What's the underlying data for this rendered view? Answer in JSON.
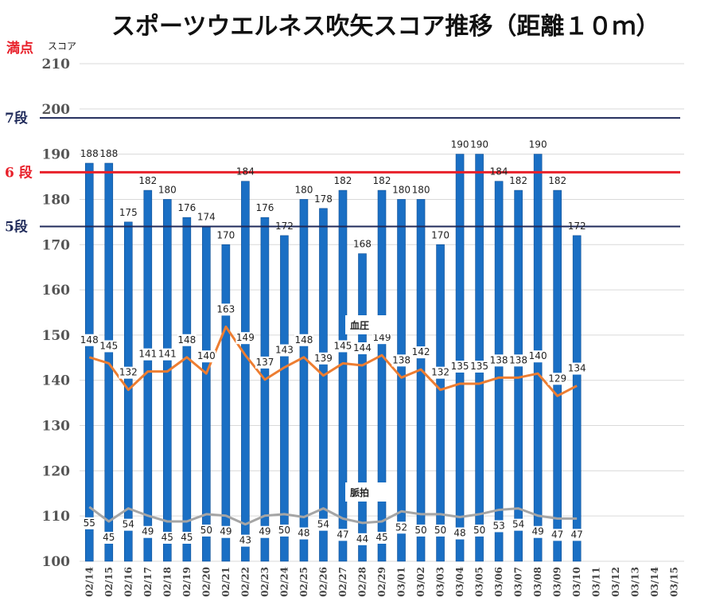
{
  "chart_data": {
    "type": "bar",
    "title": "スポーツウエルネス吹矢スコア推移（距離１０ｍ）",
    "ylabel": "スコア",
    "top_label": "満点",
    "ylim": [
      100,
      210
    ],
    "yticks": [
      100,
      110,
      120,
      130,
      140,
      150,
      160,
      170,
      180,
      190,
      200,
      210
    ],
    "categories": [
      "02/14",
      "02/15",
      "02/16",
      "02/17",
      "02/18",
      "02/19",
      "02/20",
      "02/21",
      "02/22",
      "02/23",
      "02/24",
      "02/25",
      "02/26",
      "02/27",
      "02/28",
      "02/29",
      "03/01",
      "03/02",
      "03/03",
      "03/04",
      "03/05",
      "03/06",
      "03/07",
      "03/08",
      "03/09",
      "03/10",
      "03/11",
      "03/12",
      "03/13",
      "03/14",
      "03/15"
    ],
    "series": [
      {
        "values": [
          188,
          188,
          175,
          182,
          180,
          176,
          174,
          170,
          184,
          176,
          172,
          180,
          178,
          182,
          168,
          182,
          180,
          180,
          170,
          190,
          190,
          184,
          182,
          190,
          182,
          172,
          null,
          null,
          null,
          null,
          null
        ]
      },
      {
        "name": "血圧",
        "values": [
          148,
          145,
          132,
          141,
          141,
          148,
          140,
          163,
          149,
          137,
          143,
          148,
          139,
          145,
          144,
          149,
          138,
          142,
          132,
          135,
          135,
          138,
          138,
          140,
          129,
          134,
          null,
          null,
          null,
          null,
          null
        ]
      },
      {
        "name": "脈拍",
        "values": [
          55,
          45,
          54,
          49,
          45,
          45,
          50,
          49,
          43,
          49,
          50,
          48,
          54,
          47,
          44,
          45,
          52,
          50,
          50,
          48,
          50,
          53,
          54,
          49,
          47,
          47,
          null,
          null,
          null,
          null,
          null
        ]
      }
    ],
    "reference_lines": [
      {
        "label": "7段",
        "value": 198,
        "color": "#1f2a5a"
      },
      {
        "label": "6 段",
        "value": 186,
        "color": "#e8202a"
      },
      {
        "label": "5段",
        "value": 174,
        "color": "#1f2a5a"
      }
    ],
    "colors": {
      "bar": "#1a6fc4",
      "bp_line": "#ed7d31",
      "pulse_line": "#a5a5a5",
      "top_label": "#e8202a",
      "grid": "#d9d9d9"
    },
    "grid": true
  }
}
